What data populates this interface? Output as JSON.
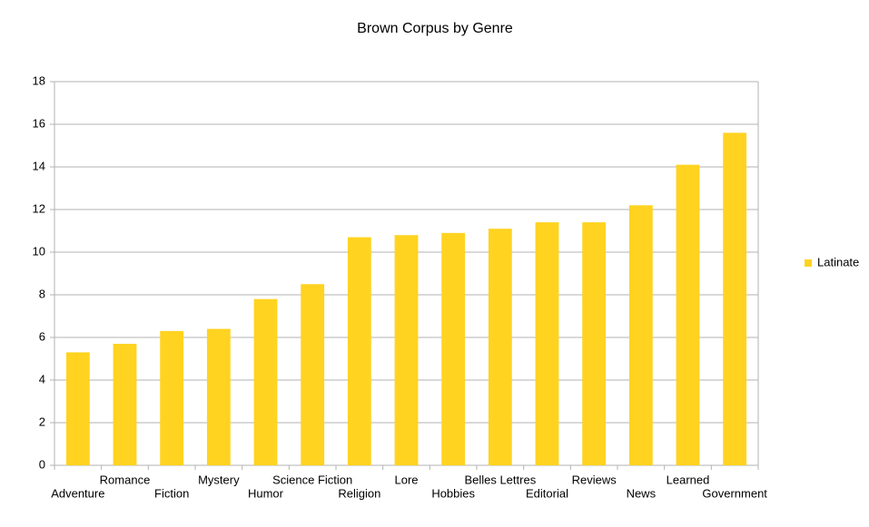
{
  "chart_data": {
    "type": "bar",
    "title": "Brown Corpus by Genre",
    "categories": [
      "Adventure",
      "Romance",
      "Fiction",
      "Mystery",
      "Humor",
      "Science Fiction",
      "Religion",
      "Lore",
      "Hobbies",
      "Belles Lettres",
      "Editorial",
      "Reviews",
      "News",
      "Learned",
      "Government"
    ],
    "series": [
      {
        "name": "Latinate",
        "color": "#ffd320",
        "values": [
          5.3,
          5.7,
          6.3,
          6.4,
          7.8,
          8.5,
          10.7,
          10.8,
          10.9,
          11.1,
          11.4,
          11.4,
          12.2,
          14.1,
          15.6
        ]
      }
    ],
    "ylim": [
      0,
      18
    ],
    "yticks": [
      0,
      2,
      4,
      6,
      8,
      10,
      12,
      14,
      16,
      18
    ],
    "grid": true,
    "legend": "right"
  }
}
